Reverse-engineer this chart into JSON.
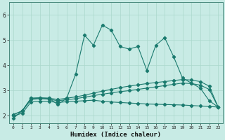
{
  "xlabel": "Humidex (Indice chaleur)",
  "bg_color": "#c8ebe5",
  "line_color": "#1a7a6e",
  "grid_color": "#aad8cc",
  "x_ticks": [
    0,
    1,
    2,
    3,
    4,
    5,
    6,
    7,
    8,
    9,
    10,
    11,
    12,
    13,
    14,
    15,
    16,
    17,
    18,
    19,
    20,
    21,
    22,
    23
  ],
  "ylim": [
    1.7,
    6.5
  ],
  "xlim": [
    -0.5,
    23.5
  ],
  "line1_y": [
    1.9,
    2.2,
    2.7,
    2.7,
    2.7,
    2.45,
    2.7,
    3.65,
    5.2,
    4.8,
    5.6,
    5.4,
    4.75,
    4.65,
    4.75,
    3.8,
    4.8,
    5.1,
    4.35,
    3.5,
    3.3,
    3.1,
    2.6,
    2.35
  ],
  "line2_y": [
    2.05,
    2.2,
    2.7,
    2.72,
    2.7,
    2.65,
    2.7,
    2.75,
    2.82,
    2.9,
    2.98,
    3.05,
    3.12,
    3.18,
    3.23,
    3.28,
    3.32,
    3.36,
    3.4,
    3.44,
    3.42,
    3.36,
    3.18,
    2.35
  ],
  "line3_y": [
    2.05,
    2.18,
    2.65,
    2.68,
    2.66,
    2.6,
    2.64,
    2.68,
    2.74,
    2.8,
    2.86,
    2.91,
    2.96,
    3.0,
    3.05,
    3.1,
    3.15,
    3.2,
    3.25,
    3.3,
    3.28,
    3.22,
    3.05,
    2.35
  ],
  "line4_y": [
    2.0,
    2.1,
    2.55,
    2.58,
    2.57,
    2.53,
    2.56,
    2.58,
    2.6,
    2.62,
    2.58,
    2.55,
    2.53,
    2.51,
    2.49,
    2.47,
    2.46,
    2.45,
    2.44,
    2.43,
    2.41,
    2.39,
    2.37,
    2.35
  ]
}
